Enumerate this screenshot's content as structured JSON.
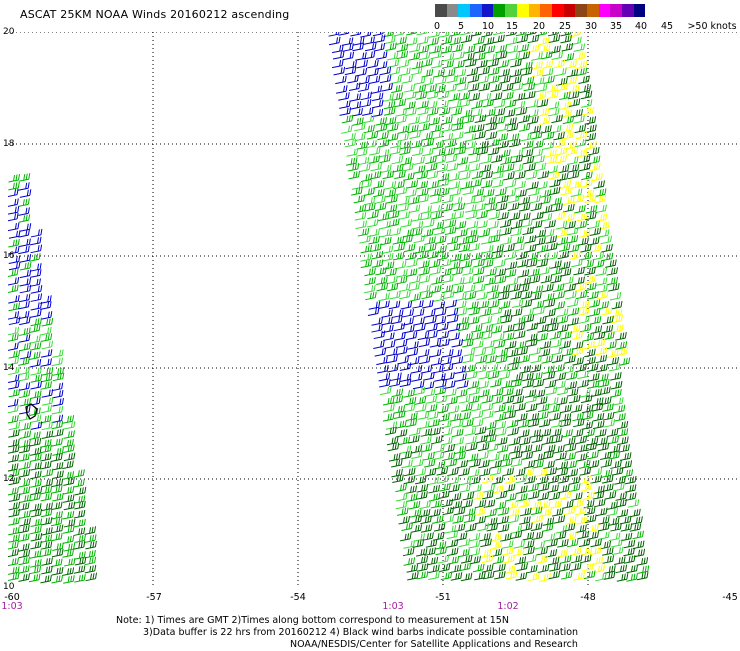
{
  "title": "ASCAT 25KM NOAA Winds 20160212 ascending",
  "colorbar": {
    "colors": [
      "#4a4a4a",
      "#8a8a8a",
      "#00c8ff",
      "#1e64ff",
      "#1414c8",
      "#00a000",
      "#50d23c",
      "#ffff00",
      "#ffb400",
      "#ff6400",
      "#ff0000",
      "#c80000",
      "#8c4614",
      "#c86400",
      "#ff00ff",
      "#c800c8",
      "#6400b4",
      "#000080"
    ],
    "labels": [
      {
        "text": "0",
        "key": "0"
      },
      {
        "text": "5",
        "key": "5"
      },
      {
        "text": "10",
        "key": "10"
      },
      {
        "text": "15",
        "key": "15"
      },
      {
        "text": "20",
        "key": "20"
      },
      {
        "text": "25",
        "key": "25"
      },
      {
        "text": "30",
        "key": "30"
      },
      {
        "text": "35",
        "key": "35"
      },
      {
        "text": "40",
        "key": "40"
      },
      {
        "text": "45",
        "key": "45"
      },
      {
        "text": ">50 knots",
        "key": "50"
      }
    ]
  },
  "axes": {
    "lat_labels": [
      "20",
      "18",
      "16",
      "14",
      "12",
      "10"
    ],
    "lon_labels": [
      "-60",
      "-57",
      "-54",
      "-51",
      "-48",
      "-45"
    ],
    "time_labels": [
      "1:03",
      "1:03",
      "1:02"
    ]
  },
  "notes": {
    "line1": "Note: 1) Times are GMT 2)Times along bottom correspond to measurement at 15N",
    "line2": "3)Data buffer is 22 hrs from 20160212 4) Black wind barbs indicate possible contamination",
    "line3": "NOAA/NESDIS/Center for Satellite Applications and Research"
  },
  "wind_colors": {
    "dark_green": "#006400",
    "green": "#00b400",
    "light_green": "#3cdc3c",
    "blue": "#0000c8",
    "yellow": "#ffff00",
    "black": "#000000"
  }
}
